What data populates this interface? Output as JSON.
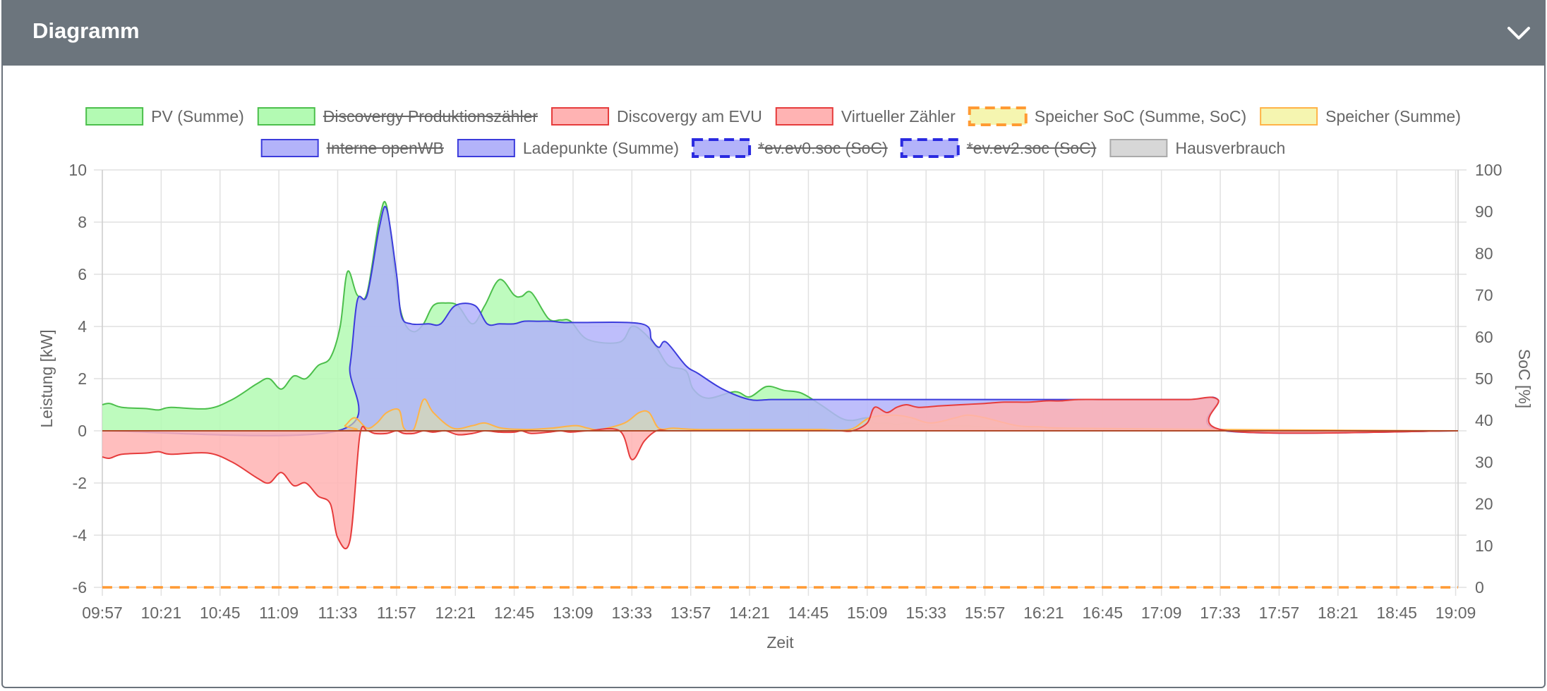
{
  "card": {
    "title": "Diagramm",
    "collapse_icon": "chevron-down-icon"
  },
  "chart_data": {
    "type": "area",
    "x_label": "Zeit",
    "y_label_left": "Leistung [kW]",
    "y_label_right": "SoC [%]",
    "y_range_left": [
      -6,
      10
    ],
    "y_ticks_left": [
      -6,
      -4,
      -2,
      0,
      2,
      4,
      6,
      8,
      10
    ],
    "y_range_right": [
      0,
      100
    ],
    "y_ticks_right": [
      0,
      10,
      20,
      30,
      40,
      50,
      60,
      70,
      80,
      90,
      100
    ],
    "x_range": [
      "09:57",
      "19:10"
    ],
    "x_ticks": [
      "09:57",
      "10:21",
      "10:45",
      "11:09",
      "11:33",
      "11:57",
      "12:21",
      "12:45",
      "13:09",
      "13:33",
      "13:57",
      "14:21",
      "14:45",
      "15:09",
      "15:33",
      "15:57",
      "16:21",
      "16:45",
      "17:09",
      "17:33",
      "17:57",
      "18:21",
      "18:45",
      "19:09"
    ],
    "grid": true,
    "legend_position": "top",
    "legend": [
      {
        "label": "PV (Summe)",
        "fill": "#b3fab3",
        "stroke": "#4cbf4c",
        "dashed": false,
        "hidden": false
      },
      {
        "label": "Discovergy Produktionszähler",
        "fill": "#b3fab3",
        "stroke": "#4cbf4c",
        "dashed": false,
        "hidden": true
      },
      {
        "label": "Discovergy am EVU",
        "fill": "#ffb3b3",
        "stroke": "#e63c3c",
        "dashed": false,
        "hidden": false
      },
      {
        "label": "Virtueller Zähler",
        "fill": "#ffb3b3",
        "stroke": "#e63c3c",
        "dashed": false,
        "hidden": false
      },
      {
        "label": "Speicher SoC (Summe, SoC)",
        "fill": "#f5f5b0",
        "stroke": "#ff9a33",
        "dashed": true,
        "hidden": false
      },
      {
        "label": "Speicher (Summe)",
        "fill": "#f5f5b0",
        "stroke": "#ffb347",
        "dashed": false,
        "hidden": false
      },
      {
        "label": "Interne openWB",
        "fill": "#b3b3fa",
        "stroke": "#3c3cdc",
        "dashed": false,
        "hidden": true
      },
      {
        "label": "Ladepunkte (Summe)",
        "fill": "#b3b3fa",
        "stroke": "#3c3cdc",
        "dashed": false,
        "hidden": false
      },
      {
        "label": "*ev.ev0.soc (SoC)",
        "fill": "#b3b3fa",
        "stroke": "#2a2ae0",
        "dashed": true,
        "hidden": true
      },
      {
        "label": "*ev.ev2.soc (SoC)",
        "fill": "#b3b3fa",
        "stroke": "#2a2ae0",
        "dashed": true,
        "hidden": true
      },
      {
        "label": "Hausverbrauch",
        "fill": "#d7d7d7",
        "stroke": "#aaaaaa",
        "dashed": false,
        "hidden": false
      }
    ],
    "series": [
      {
        "name": "PV (Summe)",
        "axis": "left",
        "fill": "#b3fab3",
        "fill_opacity": 0.85,
        "stroke": "#4cbf4c",
        "x": [
          "09:57",
          "10:00",
          "10:05",
          "10:15",
          "10:20",
          "10:25",
          "10:40",
          "10:50",
          "11:00",
          "11:05",
          "11:10",
          "11:15",
          "11:20",
          "11:25",
          "11:30",
          "11:34",
          "11:37",
          "11:41",
          "11:45",
          "11:50",
          "11:53",
          "11:57",
          "12:00",
          "12:04",
          "12:08",
          "12:12",
          "12:17",
          "12:22",
          "12:28",
          "12:33",
          "12:39",
          "12:45",
          "12:48",
          "12:52",
          "12:59",
          "13:04",
          "13:08",
          "13:15",
          "13:28",
          "13:33",
          "13:38",
          "13:43",
          "13:48",
          "13:55",
          "13:58",
          "14:04",
          "14:15",
          "14:21",
          "14:28",
          "14:35",
          "14:42",
          "14:50",
          "14:58",
          "15:03",
          "15:09",
          "15:12",
          "15:17",
          "15:21",
          "15:25",
          "15:30",
          "15:38",
          "15:47",
          "15:57",
          "16:05",
          "16:15",
          "16:22",
          "16:28",
          "16:35",
          "17:33",
          "19:10"
        ],
        "y": [
          1.0,
          1.05,
          0.9,
          0.85,
          0.8,
          0.9,
          0.85,
          1.2,
          1.8,
          2.0,
          1.6,
          2.1,
          2.0,
          2.5,
          2.8,
          4.0,
          6.1,
          5.2,
          5.3,
          8.1,
          8.6,
          5.5,
          4.2,
          3.8,
          4.1,
          4.8,
          4.9,
          4.8,
          4.1,
          4.8,
          5.8,
          5.2,
          5.15,
          5.3,
          4.3,
          4.25,
          4.2,
          3.5,
          3.4,
          4.0,
          3.75,
          3.2,
          2.5,
          2.3,
          1.6,
          1.25,
          1.5,
          1.3,
          1.7,
          1.55,
          1.45,
          1.0,
          0.5,
          0.4,
          0.5,
          0.3,
          0.3,
          0.25,
          0.3,
          0.25,
          0.2,
          0.2,
          0.15,
          0.1,
          0.1,
          0.05,
          0.05,
          0.0,
          0.0,
          0.0
        ]
      },
      {
        "name": "Ladepunkte (Summe)",
        "axis": "left",
        "fill": "#b3b3fa",
        "fill_opacity": 0.85,
        "stroke": "#3c3cdc",
        "x": [
          "09:57",
          "11:33",
          "11:38",
          "11:41",
          "11:45",
          "11:50",
          "11:53",
          "11:57",
          "11:59",
          "12:03",
          "12:10",
          "12:15",
          "12:21",
          "12:29",
          "12:34",
          "12:39",
          "12:45",
          "12:49",
          "12:55",
          "13:00",
          "13:05",
          "13:10",
          "13:37",
          "13:41",
          "13:44",
          "13:47",
          "13:55",
          "14:00",
          "14:10",
          "14:21",
          "14:30",
          "14:40",
          "14:48",
          "15:04",
          "15:07",
          "15:15",
          "15:30",
          "15:45",
          "15:57",
          "16:15",
          "16:30",
          "16:40",
          "16:45",
          "17:20",
          "17:32",
          "17:35",
          "19:10"
        ],
        "y": [
          0,
          0,
          2.5,
          5.0,
          5.2,
          7.8,
          8.5,
          6.0,
          4.4,
          4.1,
          4.1,
          4.1,
          4.8,
          4.8,
          4.1,
          4.1,
          4.1,
          4.2,
          4.2,
          4.2,
          4.15,
          4.15,
          4.1,
          3.5,
          3.2,
          3.4,
          2.5,
          2.2,
          1.6,
          1.2,
          1.2,
          1.2,
          1.2,
          1.2,
          1.2,
          1.2,
          1.2,
          1.2,
          1.2,
          1.2,
          1.2,
          1.2,
          1.2,
          1.2,
          1.2,
          0,
          0
        ]
      },
      {
        "name": "Speicher (Summe)",
        "axis": "left",
        "fill": "#e0dfa6",
        "fill_opacity": 0.6,
        "stroke": "#ffb347",
        "x": [
          "09:57",
          "11:33",
          "11:36",
          "11:40",
          "11:45",
          "11:49",
          "11:53",
          "11:58",
          "12:00",
          "12:04",
          "12:08",
          "12:12",
          "12:20",
          "12:28",
          "12:33",
          "12:40",
          "12:50",
          "13:00",
          "13:10",
          "13:15",
          "13:20",
          "13:30",
          "13:36",
          "13:40",
          "13:44",
          "13:50",
          "14:00",
          "14:20",
          "14:40",
          "14:50",
          "15:02",
          "15:10",
          "15:20",
          "15:27",
          "15:35",
          "15:45",
          "15:50",
          "15:57",
          "16:10",
          "16:20",
          "16:30",
          "17:30",
          "19:10"
        ],
        "y": [
          0,
          0,
          0.2,
          0.5,
          0.1,
          0.3,
          0.7,
          0.8,
          0.1,
          0.05,
          1.2,
          0.7,
          0.1,
          0.2,
          0.3,
          0.1,
          0.05,
          0.1,
          0.2,
          0.1,
          0.05,
          0.3,
          0.7,
          0.7,
          0.1,
          0.1,
          0.05,
          0.05,
          0.05,
          0.05,
          0.05,
          0.5,
          0.6,
          0.5,
          0.3,
          0.5,
          0.6,
          0.5,
          0.2,
          0.15,
          0.1,
          0.05,
          0
        ]
      },
      {
        "name": "Discovergy am EVU",
        "axis": "left",
        "fill": "#ffb3b3",
        "fill_opacity": 0.85,
        "stroke": "#e63c3c",
        "x": [
          "09:57",
          "10:00",
          "10:05",
          "10:15",
          "10:20",
          "10:25",
          "10:40",
          "10:50",
          "11:00",
          "11:05",
          "11:10",
          "11:15",
          "11:20",
          "11:25",
          "11:30",
          "11:33",
          "11:38",
          "11:42",
          "11:45",
          "11:48",
          "11:53",
          "11:57",
          "12:00",
          "12:04",
          "12:08",
          "12:12",
          "12:17",
          "12:22",
          "12:28",
          "12:33",
          "12:39",
          "12:45",
          "12:48",
          "12:52",
          "12:59",
          "13:04",
          "13:08",
          "13:15",
          "13:28",
          "13:33",
          "13:38",
          "13:43",
          "13:48",
          "13:55",
          "13:58",
          "14:04",
          "14:15",
          "14:21",
          "14:28",
          "14:35",
          "14:42",
          "14:50",
          "14:58",
          "15:03",
          "15:09",
          "15:12",
          "15:17",
          "15:21",
          "15:25",
          "15:30",
          "15:38",
          "15:47",
          "15:57",
          "16:05",
          "16:15",
          "16:22",
          "16:28",
          "16:35",
          "16:45",
          "17:00",
          "17:20",
          "17:32",
          "17:36",
          "19:10"
        ],
        "y": [
          -1.0,
          -1.05,
          -0.9,
          -0.85,
          -0.8,
          -0.9,
          -0.85,
          -1.2,
          -1.8,
          -2.0,
          -1.6,
          -2.1,
          -2.0,
          -2.5,
          -2.8,
          -4.1,
          -4.2,
          -0.2,
          0,
          -0.1,
          -0.1,
          0,
          -0.1,
          -0.1,
          0,
          -0.05,
          0,
          -0.15,
          -0.1,
          0,
          -0.05,
          -0.05,
          0,
          -0.1,
          -0.05,
          0,
          -0.05,
          0,
          0,
          -1.1,
          -0.4,
          0,
          0,
          0,
          0,
          0,
          0,
          0,
          0,
          0,
          0,
          0,
          0,
          0,
          0.3,
          0.9,
          0.7,
          0.9,
          1.0,
          0.9,
          0.95,
          1.0,
          1.05,
          1.1,
          1.1,
          1.15,
          1.15,
          1.2,
          1.2,
          1.2,
          1.2,
          1.2,
          0,
          0
        ]
      },
      {
        "name": "Speicher SoC (Summe, SoC)",
        "axis": "right",
        "fill": "none",
        "stroke": "#ff9a33",
        "dashed": true,
        "x": [
          "09:57",
          "19:10"
        ],
        "y": [
          0,
          0
        ]
      }
    ]
  }
}
